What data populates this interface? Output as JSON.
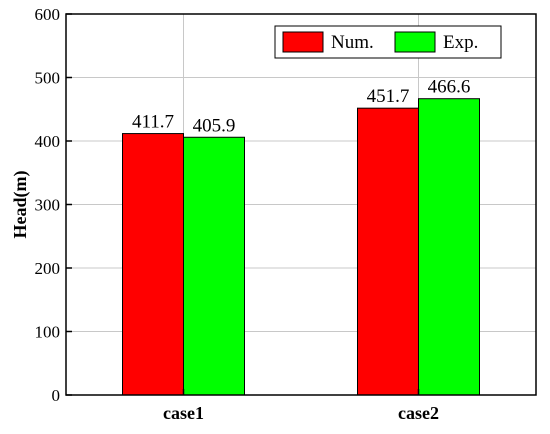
{
  "chart_data": {
    "type": "bar",
    "categories": [
      "case1",
      "case2"
    ],
    "series": [
      {
        "name": "Num.",
        "values": [
          411.7,
          451.7
        ],
        "color": "#ff0000"
      },
      {
        "name": "Exp.",
        "values": [
          405.9,
          466.6
        ],
        "color": "#00ff00"
      }
    ],
    "data_labels": [
      [
        "411.7",
        "451.7"
      ],
      [
        "405.9",
        "466.6"
      ]
    ],
    "title": "",
    "xlabel": "",
    "ylabel": "Head(m)",
    "ylim": [
      0,
      600
    ],
    "yticks": [
      "0",
      "100",
      "200",
      "300",
      "400",
      "500",
      "600"
    ],
    "grid": true,
    "legend_position": "top-right"
  }
}
